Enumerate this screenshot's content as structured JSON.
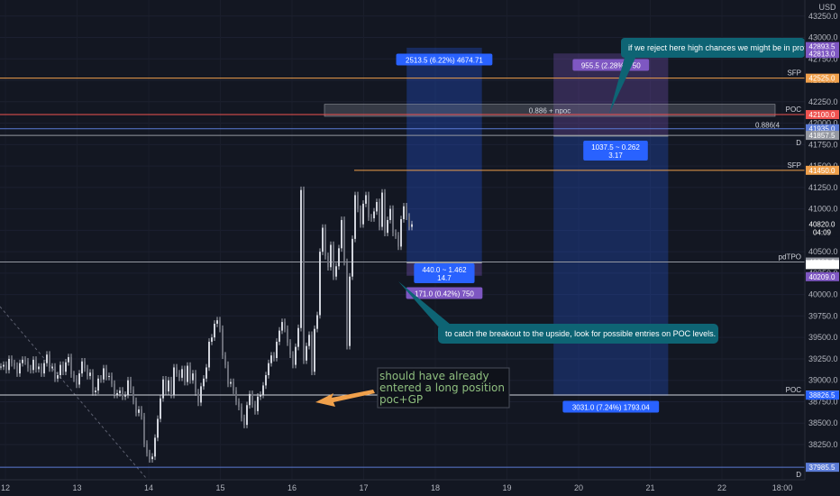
{
  "chart_data": {
    "type": "candlestick",
    "currency": "USD",
    "x_ticks": [
      "12",
      "13",
      "14",
      "15",
      "16",
      "17",
      "18",
      "19",
      "20",
      "21",
      "22",
      "18:00"
    ],
    "y_ticks": [
      38250,
      38500,
      38750,
      39000,
      39250,
      39500,
      39750,
      40000,
      40250,
      40500,
      40750,
      41000,
      41250,
      41500,
      41750,
      42000,
      42250,
      42500,
      42750,
      43000,
      43250
    ],
    "ylim": [
      37900,
      43350
    ],
    "levels": [
      {
        "name": "SFP",
        "value": 42525,
        "color": "#f0a04b",
        "tag": "42525.0"
      },
      {
        "name": "POC",
        "value": 42100,
        "color": "#ef5350",
        "tag": "42100.0"
      },
      {
        "name": "",
        "value": 41935,
        "color": "#5b7bd5",
        "tag": "41935.0"
      },
      {
        "name": "D",
        "value": 41857.5,
        "color": "#9598a1",
        "tag": "41857.5"
      },
      {
        "name": "SFP",
        "value": 41450,
        "color": "#f0a04b",
        "tag": "41450.0"
      },
      {
        "name": "pdTPO",
        "value": 40380,
        "color": "#9598a1",
        "tag": "40380.0"
      },
      {
        "name": "POC",
        "value": 38828.5,
        "color": "#d1d4dc",
        "tag": "38828.5"
      },
      {
        "name": "D",
        "value": 37985.5,
        "color": "#5b7bd5",
        "tag": "37985.5"
      }
    ],
    "price_tags": [
      {
        "text": "42893.5",
        "value": 42893.5,
        "color": "#7e57c2"
      },
      {
        "text": "42813.0",
        "value": 42813,
        "color": "#7e57c2"
      },
      {
        "text": "40820.0",
        "sub": "04:09",
        "value": 40820,
        "color": "#131722"
      },
      {
        "text": "40350.0",
        "value": 40350,
        "color": "#ffffff"
      },
      {
        "text": "40209.0",
        "value": 40209,
        "color": "#7e57c2"
      },
      {
        "text": "38826.5",
        "value": 38826.5,
        "color": "#2962ff"
      }
    ],
    "candles": [
      [
        0,
        39160
      ],
      [
        3,
        39180
      ],
      [
        6,
        39120
      ],
      [
        9,
        39250
      ],
      [
        12,
        39200
      ],
      [
        15,
        39170
      ],
      [
        18,
        39080
      ],
      [
        21,
        39200
      ],
      [
        24,
        39240
      ],
      [
        27,
        39220
      ],
      [
        30,
        39140
      ],
      [
        33,
        39120
      ],
      [
        36,
        39240
      ],
      [
        39,
        39130
      ],
      [
        42,
        39160
      ],
      [
        45,
        39080
      ],
      [
        48,
        39200
      ],
      [
        51,
        39300
      ],
      [
        54,
        39140
      ],
      [
        57,
        39160
      ],
      [
        60,
        39020
      ],
      [
        63,
        39060
      ],
      [
        66,
        39180
      ],
      [
        69,
        39100
      ],
      [
        72,
        39210
      ],
      [
        75,
        39270
      ],
      [
        78,
        39070
      ],
      [
        81,
        39020
      ],
      [
        84,
        38950
      ],
      [
        87,
        39080
      ],
      [
        90,
        39220
      ],
      [
        93,
        39140
      ],
      [
        96,
        39050
      ],
      [
        99,
        39090
      ],
      [
        102,
        38860
      ],
      [
        105,
        38880
      ],
      [
        108,
        39020
      ],
      [
        111,
        39010
      ],
      [
        114,
        39140
      ],
      [
        117,
        39040
      ],
      [
        120,
        39050
      ],
      [
        123,
        38960
      ],
      [
        126,
        38830
      ],
      [
        129,
        38850
      ],
      [
        132,
        38880
      ],
      [
        135,
        38810
      ],
      [
        138,
        38830
      ],
      [
        141,
        39000
      ],
      [
        144,
        38890
      ],
      [
        147,
        38760
      ],
      [
        150,
        38620
      ],
      [
        153,
        38660
      ],
      [
        156,
        38580
      ],
      [
        159,
        38260
      ],
      [
        162,
        38150
      ],
      [
        165,
        38080
      ],
      [
        168,
        38110
      ],
      [
        171,
        38330
      ],
      [
        174,
        38550
      ],
      [
        177,
        38790
      ],
      [
        180,
        39010
      ],
      [
        183,
        38870
      ],
      [
        186,
        39000
      ],
      [
        189,
        38830
      ],
      [
        192,
        39150
      ],
      [
        195,
        39080
      ],
      [
        198,
        39030
      ],
      [
        201,
        39130
      ],
      [
        204,
        38980
      ],
      [
        207,
        39170
      ],
      [
        210,
        39000
      ],
      [
        213,
        39080
      ],
      [
        216,
        38860
      ],
      [
        219,
        38740
      ],
      [
        222,
        38930
      ],
      [
        225,
        39020
      ],
      [
        228,
        39150
      ],
      [
        231,
        39450
      ],
      [
        234,
        39500
      ],
      [
        237,
        39660
      ],
      [
        240,
        39700
      ],
      [
        243,
        39600
      ],
      [
        246,
        39290
      ],
      [
        249,
        39180
      ],
      [
        252,
        38960
      ],
      [
        255,
        38980
      ],
      [
        258,
        38880
      ],
      [
        261,
        38750
      ],
      [
        264,
        38690
      ],
      [
        267,
        38560
      ],
      [
        270,
        38480
      ],
      [
        273,
        38710
      ],
      [
        276,
        38840
      ],
      [
        279,
        38720
      ],
      [
        282,
        38640
      ],
      [
        285,
        38810
      ],
      [
        288,
        38830
      ],
      [
        291,
        38940
      ],
      [
        294,
        39060
      ],
      [
        297,
        39200
      ],
      [
        300,
        39290
      ],
      [
        303,
        39260
      ],
      [
        306,
        39450
      ],
      [
        309,
        39580
      ],
      [
        312,
        39680
      ],
      [
        315,
        39600
      ],
      [
        318,
        39440
      ],
      [
        321,
        39300
      ],
      [
        324,
        39180
      ],
      [
        327,
        39390
      ],
      [
        330,
        39610
      ],
      [
        333,
        41220
      ],
      [
        336,
        39230
      ],
      [
        339,
        39400
      ],
      [
        342,
        39530
      ],
      [
        345,
        39100
      ],
      [
        348,
        39600
      ],
      [
        351,
        39760
      ],
      [
        354,
        40500
      ],
      [
        357,
        40780
      ],
      [
        360,
        40450
      ],
      [
        363,
        40320
      ],
      [
        366,
        40580
      ],
      [
        369,
        40210
      ],
      [
        372,
        40330
      ],
      [
        375,
        40540
      ],
      [
        378,
        40870
      ],
      [
        381,
        40380
      ],
      [
        384,
        39400
      ],
      [
        387,
        40210
      ],
      [
        390,
        40650
      ],
      [
        393,
        41160
      ],
      [
        396,
        41000
      ],
      [
        399,
        40820
      ],
      [
        402,
        41060
      ],
      [
        405,
        41160
      ],
      [
        408,
        40900
      ],
      [
        411,
        40890
      ],
      [
        414,
        40970
      ],
      [
        417,
        41080
      ],
      [
        420,
        40790
      ],
      [
        423,
        41190
      ],
      [
        426,
        40720
      ],
      [
        429,
        40870
      ],
      [
        432,
        41000
      ],
      [
        435,
        40720
      ],
      [
        438,
        40690
      ],
      [
        441,
        40560
      ],
      [
        444,
        40880
      ],
      [
        447,
        41030
      ],
      [
        450,
        40910
      ],
      [
        453,
        40790
      ],
      [
        456,
        40820
      ]
    ],
    "boxes": [
      {
        "type": "long-position",
        "from_day": 17.6,
        "to_day": 18.65,
        "entry": 40370,
        "target": 42880,
        "stop": 40220,
        "top_label": "2513.5 (6.22%) 4674.71",
        "mid_label": "440.0 ~ 1.462\n14.7",
        "bottom_label": "171.0 (0.42%) 750"
      },
      {
        "type": "short-position",
        "from_day": 19.65,
        "to_day": 21.25,
        "entry": 41850,
        "target": 38820,
        "stop": 42813,
        "top_label": "955.5 (2.28%) 750",
        "mid_label": "1037.5 ~ 0.262\n3.17",
        "bottom_label": "3031.0 (7.24%) 1793.04"
      }
    ],
    "zone": {
      "label": "0.886 + npoc",
      "right_label": "0.886(4",
      "low": 42080,
      "high": 42220
    },
    "annotations": [
      {
        "text": "if we reject here high chances we might be in prof"
      },
      {
        "text": "to catch the breakout to the upside, look for possible entries on POC levels."
      },
      {
        "text_lines": [
          "should have already",
          "entered a long position",
          "poc+GP"
        ]
      }
    ]
  }
}
